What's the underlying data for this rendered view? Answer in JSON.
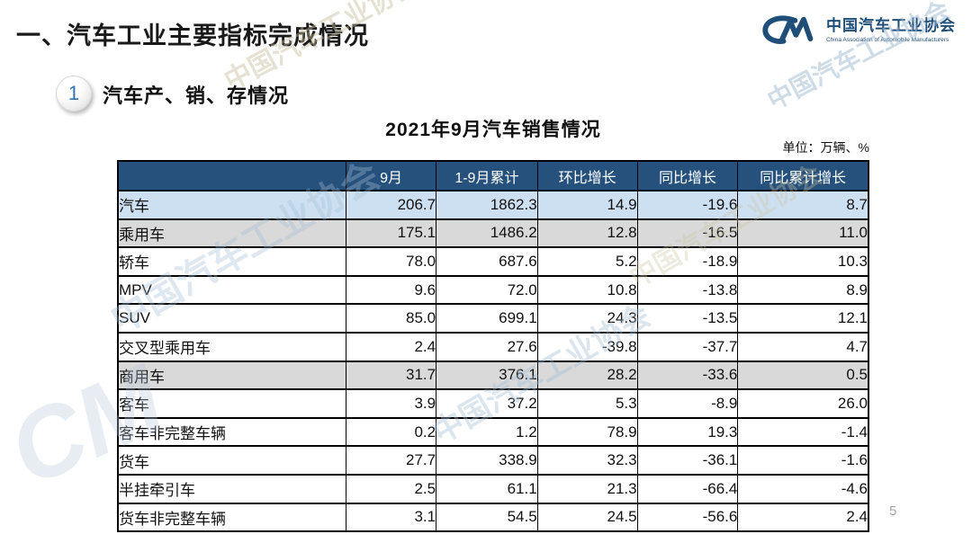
{
  "page": {
    "title": "一、汽车工业主要指标完成情况",
    "page_number": "5"
  },
  "logo": {
    "monogram": "CM",
    "name_cn": "中国汽车工业协会",
    "name_en": "China Association of Automobile Manufacturers"
  },
  "section": {
    "badge": "1",
    "title": "汽车产、销、存情况"
  },
  "table": {
    "title": "2021年9月汽车销售情况",
    "unit_label": "单位：万辆、%",
    "columns": [
      "",
      "9月",
      "1-9月累计",
      "环比增长",
      "同比增长",
      "同比累计增长"
    ],
    "rows": [
      {
        "label": "汽车",
        "indent": 0,
        "style": "blue",
        "values": [
          "206.7",
          "1862.3",
          "14.9",
          "-19.6",
          "8.7"
        ]
      },
      {
        "label": "乘用车",
        "indent": 1,
        "style": "gray",
        "values": [
          "175.1",
          "1486.2",
          "12.8",
          "-16.5",
          "11.0"
        ]
      },
      {
        "label": "轿车",
        "indent": 2,
        "style": "white",
        "values": [
          "78.0",
          "687.6",
          "5.2",
          "-18.9",
          "10.3"
        ]
      },
      {
        "label": "MPV",
        "indent": 2,
        "style": "white",
        "values": [
          "9.6",
          "72.0",
          "10.8",
          "-13.8",
          "8.9"
        ]
      },
      {
        "label": "SUV",
        "indent": 2,
        "style": "white",
        "values": [
          "85.0",
          "699.1",
          "24.3",
          "-13.5",
          "12.1"
        ]
      },
      {
        "label": "交叉型乘用车",
        "indent": 2,
        "style": "white",
        "values": [
          "2.4",
          "27.6",
          "-39.8",
          "-37.7",
          "4.7"
        ]
      },
      {
        "label": "商用车",
        "indent": 1,
        "style": "gray",
        "values": [
          "31.7",
          "376.1",
          "28.2",
          "-33.6",
          "0.5"
        ]
      },
      {
        "label": "客车",
        "indent": 2,
        "style": "white",
        "values": [
          "3.9",
          "37.2",
          "5.3",
          "-8.9",
          "26.0"
        ]
      },
      {
        "label": "客车非完整车辆",
        "indent": 3,
        "style": "white",
        "values": [
          "0.2",
          "1.2",
          "78.9",
          "19.3",
          "-1.4"
        ]
      },
      {
        "label": "货车",
        "indent": 2,
        "style": "white",
        "values": [
          "27.7",
          "338.9",
          "32.3",
          "-36.1",
          "-1.6"
        ]
      },
      {
        "label": "半挂牵引车",
        "indent": 3,
        "style": "white",
        "values": [
          "2.5",
          "61.1",
          "21.3",
          "-66.4",
          "-4.6"
        ]
      },
      {
        "label": "货车非完整车辆",
        "indent": 3,
        "style": "white",
        "values": [
          "3.1",
          "54.5",
          "24.5",
          "-56.6",
          "2.4"
        ]
      }
    ]
  },
  "watermark": {
    "text": "中国汽车工业协会",
    "monogram": "CM"
  },
  "colors": {
    "header_bg": "#25517C",
    "header_text": "#FFFFFF",
    "row_blue_bg": "#CDE0F1",
    "row_gray_bg": "#D9D9D9",
    "logo_blue": "#1F4E79",
    "badge_number_blue": "#2E74B5",
    "page_number_gray": "#A6A6A6",
    "border_black": "#000000"
  }
}
